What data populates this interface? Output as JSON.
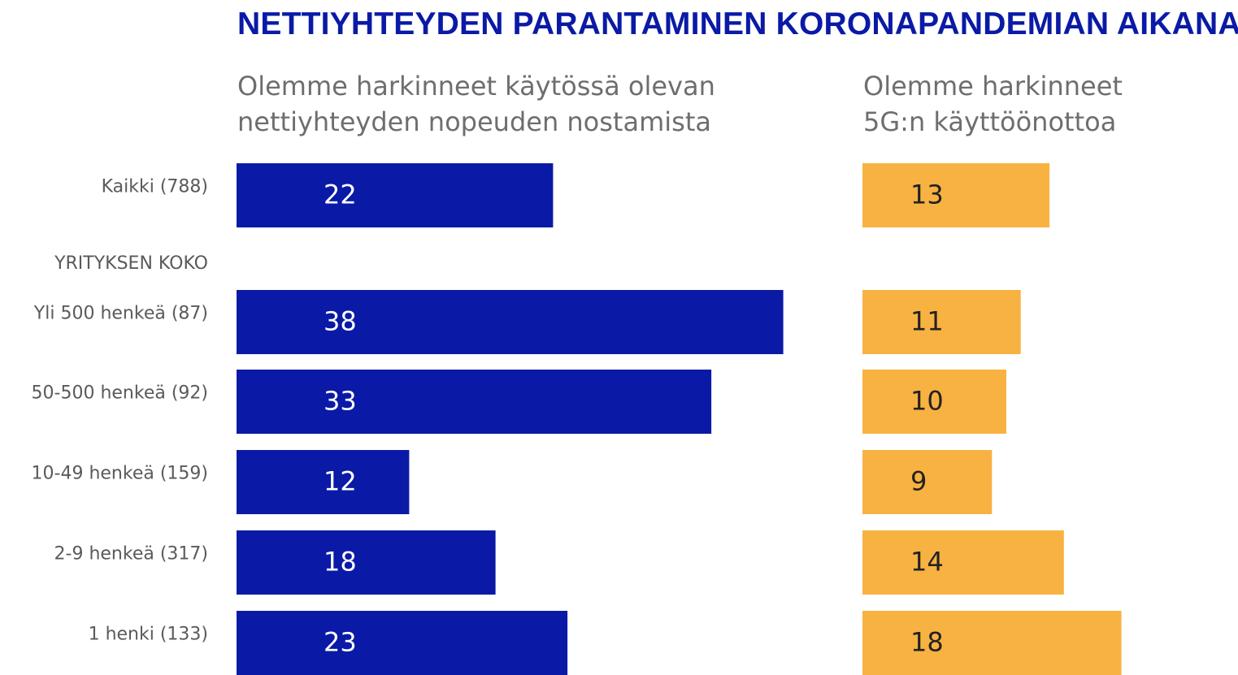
{
  "title": "NETTIYHTEYDEN PARANTAMINEN KORONAPANDEMIAN AIKANA",
  "colors": {
    "title": "#0a1aa6",
    "series1": "#0a1aa6",
    "series2": "#f8b241",
    "label_on_series1": "#ffffff",
    "label_on_series2": "#222222",
    "text_gray": "#5a5a5a"
  },
  "chart_data": {
    "type": "bar",
    "orientation": "horizontal",
    "title": "NETTIYHTEYDEN PARANTAMINEN KORONAPANDEMIAN AIKANA",
    "group_heading": "YRITYKSEN KOKO",
    "categories": [
      "Kaikki (788)",
      "Yli 500 henkeä (87)",
      "50-500 henkeä (92)",
      "10-49 henkeä (159)",
      "2-9 henkeä (317)",
      "1 henki  (133)"
    ],
    "series": [
      {
        "subtitle_lines": [
          "Olemme harkinneet käytössä olevan",
          "nettiyhteyden nopeuden nostamista"
        ],
        "values": [
          22,
          38,
          33,
          12,
          18,
          23
        ]
      },
      {
        "subtitle_lines": [
          "Olemme harkinneet",
          "5G:n käyttöönottoa"
        ],
        "values": [
          13,
          11,
          10,
          9,
          14,
          18
        ]
      }
    ]
  }
}
